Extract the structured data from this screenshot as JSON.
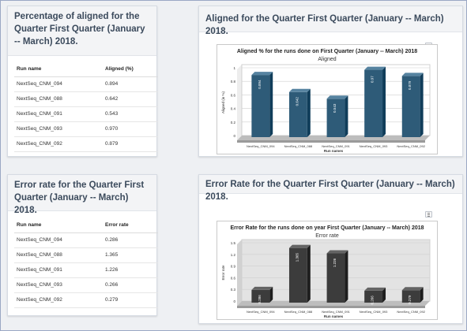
{
  "aligned_table": {
    "title": "Percentage of aligned for the Quarter First Quarter (January -- March) 2018.",
    "col_run": "Run name",
    "col_value": "Aligned (%)",
    "rows": [
      {
        "run": "NextSeq_CNM_094",
        "value": "0.894"
      },
      {
        "run": "NextSeq_CNM_088",
        "value": "0.642"
      },
      {
        "run": "NextSeq_CNM_091",
        "value": "0.543"
      },
      {
        "run": "NextSeq_CNM_093",
        "value": "0.970"
      },
      {
        "run": "NextSeq_CNM_092",
        "value": "0.879"
      }
    ]
  },
  "error_table": {
    "title": "Error rate for the Quarter First Quarter (January -- March) 2018.",
    "col_run": "Run name",
    "col_value": "Error rate",
    "rows": [
      {
        "run": "NextSeq_CNM_094",
        "value": "0.286"
      },
      {
        "run": "NextSeq_CNM_088",
        "value": "1.365"
      },
      {
        "run": "NextSeq_CNM_091",
        "value": "1.226"
      },
      {
        "run": "NextSeq_CNM_093",
        "value": "0.266"
      },
      {
        "run": "NextSeq_CNM_092",
        "value": "0.279"
      }
    ]
  },
  "aligned_panel": {
    "title": "Aligned for the Quarter First Quarter (January -- March) 2018."
  },
  "error_panel": {
    "title": "Error Rate for the Quarter First Quarter (January -- March) 2018."
  },
  "chart_data": [
    {
      "type": "bar",
      "title": "Aligned % for the runs done on First Quarter (January -- March) 2018",
      "subtitle": "Aligned",
      "xlabel": "Run names",
      "ylabel": "Aligned (in %)",
      "categories": [
        "NextSeq_CNM_094",
        "NextSeq_CNM_088",
        "NextSeq_CNM_091",
        "NextSeq_CNM_093",
        "NextSeq_CNM_092"
      ],
      "values": [
        0.894,
        0.642,
        0.543,
        0.97,
        0.879
      ],
      "value_labels": [
        "0.894",
        "0.642",
        "0.543",
        "0.97",
        "0.879"
      ],
      "yticks": [
        "0",
        "0.2",
        "0.4",
        "0.6",
        "0.8",
        "1"
      ],
      "ylim": [
        0,
        1
      ],
      "color": "#2e5b78",
      "background": "#ffffff",
      "grid": true
    },
    {
      "type": "bar",
      "title": "Error Rate for the runs done on year First Quarter (January -- March) 2018",
      "subtitle": "Error rate",
      "xlabel": "Run names",
      "ylabel": "Error rate",
      "categories": [
        "NextSeq_CNM_094",
        "NextSeq_CNM_088",
        "NextSeq_CNM_091",
        "NextSeq_CNM_093",
        "NextSeq_CNM_092"
      ],
      "values": [
        0.286,
        1.365,
        1.226,
        0.266,
        0.279
      ],
      "value_labels": [
        "0.286",
        "1.365",
        "1.226",
        "0.266",
        "0.279"
      ],
      "yticks": [
        "0",
        "0.3",
        "0.6",
        "0.9",
        "1.2",
        "1.5"
      ],
      "ylim": [
        0,
        1.5
      ],
      "color": "#3c3c3c",
      "background": "#e3e3e3",
      "grid": true
    }
  ]
}
